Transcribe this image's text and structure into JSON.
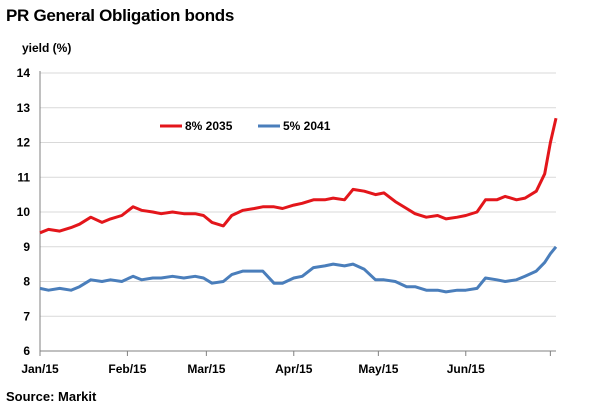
{
  "title": "PR General Obligation bonds",
  "source": "Source: Markit",
  "chart_data": {
    "type": "line",
    "ylabel": "yield (%)",
    "xlabel": "",
    "ylim": [
      6,
      14
    ],
    "yticks": [
      "6",
      "7",
      "8",
      "9",
      "10",
      "11",
      "12",
      "13",
      "14"
    ],
    "xticks": [
      "Jan/15",
      "Feb/15",
      "Mar/15",
      "Apr/15",
      "May/15",
      "Jun/15"
    ],
    "grid": "horizontal",
    "legend_position": "top-center",
    "series": [
      {
        "name": "8% 2035",
        "color": "#e3161b",
        "x": [
          "2015-01-01",
          "2015-01-04",
          "2015-01-08",
          "2015-01-12",
          "2015-01-15",
          "2015-01-19",
          "2015-01-23",
          "2015-01-26",
          "2015-01-30",
          "2015-02-03",
          "2015-02-06",
          "2015-02-10",
          "2015-02-13",
          "2015-02-17",
          "2015-02-21",
          "2015-02-25",
          "2015-02-28",
          "2015-03-03",
          "2015-03-07",
          "2015-03-10",
          "2015-03-14",
          "2015-03-18",
          "2015-03-21",
          "2015-03-25",
          "2015-03-28",
          "2015-04-01",
          "2015-04-04",
          "2015-04-08",
          "2015-04-12",
          "2015-04-15",
          "2015-04-19",
          "2015-04-22",
          "2015-04-26",
          "2015-04-30",
          "2015-05-03",
          "2015-05-07",
          "2015-05-11",
          "2015-05-14",
          "2015-05-18",
          "2015-05-22",
          "2015-05-25",
          "2015-05-29",
          "2015-06-01",
          "2015-06-05",
          "2015-06-08",
          "2015-06-12",
          "2015-06-15",
          "2015-06-19",
          "2015-06-22",
          "2015-06-26",
          "2015-06-29",
          "2015-07-01",
          "2015-07-03"
        ],
        "y": [
          9.4,
          9.5,
          9.45,
          9.55,
          9.65,
          9.85,
          9.7,
          9.8,
          9.9,
          10.15,
          10.05,
          10.0,
          9.95,
          10.0,
          9.95,
          9.95,
          9.9,
          9.7,
          9.6,
          9.9,
          10.05,
          10.1,
          10.15,
          10.15,
          10.1,
          10.2,
          10.25,
          10.35,
          10.35,
          10.4,
          10.35,
          10.65,
          10.6,
          10.5,
          10.55,
          10.3,
          10.1,
          9.95,
          9.85,
          9.9,
          9.8,
          9.85,
          9.9,
          10.0,
          10.35,
          10.35,
          10.45,
          10.35,
          10.4,
          10.6,
          11.1,
          12.0,
          12.7
        ]
      },
      {
        "name": "5% 2041",
        "color": "#4a7ebb",
        "x": [
          "2015-01-01",
          "2015-01-04",
          "2015-01-08",
          "2015-01-12",
          "2015-01-15",
          "2015-01-19",
          "2015-01-23",
          "2015-01-26",
          "2015-01-30",
          "2015-02-03",
          "2015-02-06",
          "2015-02-10",
          "2015-02-13",
          "2015-02-17",
          "2015-02-21",
          "2015-02-25",
          "2015-02-28",
          "2015-03-03",
          "2015-03-07",
          "2015-03-10",
          "2015-03-14",
          "2015-03-18",
          "2015-03-21",
          "2015-03-25",
          "2015-03-28",
          "2015-04-01",
          "2015-04-04",
          "2015-04-08",
          "2015-04-12",
          "2015-04-15",
          "2015-04-19",
          "2015-04-22",
          "2015-04-26",
          "2015-04-30",
          "2015-05-03",
          "2015-05-07",
          "2015-05-11",
          "2015-05-14",
          "2015-05-18",
          "2015-05-22",
          "2015-05-25",
          "2015-05-29",
          "2015-06-01",
          "2015-06-05",
          "2015-06-08",
          "2015-06-12",
          "2015-06-15",
          "2015-06-19",
          "2015-06-22",
          "2015-06-26",
          "2015-06-29",
          "2015-07-01",
          "2015-07-03"
        ],
        "y": [
          7.8,
          7.75,
          7.8,
          7.75,
          7.85,
          8.05,
          8.0,
          8.05,
          8.0,
          8.15,
          8.05,
          8.1,
          8.1,
          8.15,
          8.1,
          8.15,
          8.1,
          7.95,
          8.0,
          8.2,
          8.3,
          8.3,
          8.3,
          7.95,
          7.95,
          8.1,
          8.15,
          8.4,
          8.45,
          8.5,
          8.45,
          8.5,
          8.35,
          8.05,
          8.05,
          8.0,
          7.85,
          7.85,
          7.75,
          7.75,
          7.7,
          7.75,
          7.75,
          7.8,
          8.1,
          8.05,
          8.0,
          8.05,
          8.15,
          8.3,
          8.55,
          8.8,
          9.0
        ]
      }
    ]
  }
}
